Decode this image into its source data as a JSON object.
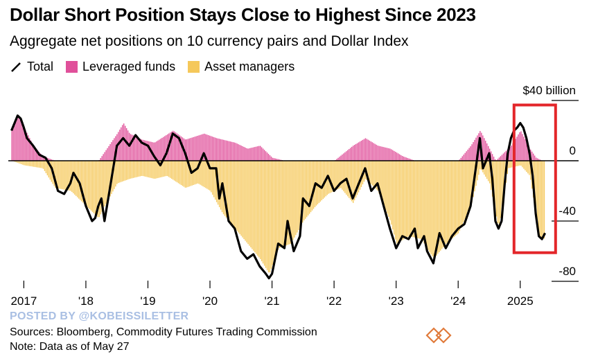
{
  "header": {
    "title": "Dollar Short Position Stays Close to Highest Since 2023",
    "subtitle": "Aggregate net positions on 10 currency pairs and Dollar Index"
  },
  "legend": {
    "total": "Total",
    "leveraged": "Leveraged funds",
    "asset": "Asset managers"
  },
  "colors": {
    "total": "#000000",
    "leveraged": "#e0509a",
    "asset": "#f5c85a",
    "asset_dark": "#f0a040",
    "highlight_box": "#e3262a",
    "grid": "#000000"
  },
  "watermark": "POSTED BY @KOBEISSILETTER",
  "footer": {
    "sources": "Sources: Bloomberg, Commodity Futures Trading Commission",
    "note": "Note: Data as of May 27"
  },
  "chart_data": {
    "type": "area",
    "unit_label": "$40 billion",
    "y_ticks": [
      {
        "value": 40,
        "label": "$40 billion"
      },
      {
        "value": 0,
        "label": "0"
      },
      {
        "value": -40,
        "label": "-40"
      },
      {
        "value": -80,
        "label": "-80"
      }
    ],
    "ylim": [
      -80,
      40
    ],
    "xlim": [
      2016.75,
      2025.55
    ],
    "x_ticks": [
      {
        "value": 2017,
        "label": "2017"
      },
      {
        "value": 2018,
        "label": "'18"
      },
      {
        "value": 2019,
        "label": "'19"
      },
      {
        "value": 2020,
        "label": "'20"
      },
      {
        "value": 2021,
        "label": "'21"
      },
      {
        "value": 2022,
        "label": "'22"
      },
      {
        "value": 2023,
        "label": "'23"
      },
      {
        "value": 2024,
        "label": "'24"
      },
      {
        "value": 2025,
        "label": "2025"
      }
    ],
    "highlight": {
      "x_start": 2024.9,
      "x_end": 2025.57,
      "y_top": 37,
      "y_bottom": -61
    },
    "series": [
      {
        "name": "Total",
        "points": [
          [
            2016.8,
            20
          ],
          [
            2016.85,
            25
          ],
          [
            2016.9,
            30
          ],
          [
            2016.95,
            28
          ],
          [
            2017.0,
            22
          ],
          [
            2017.05,
            15
          ],
          [
            2017.15,
            10
          ],
          [
            2017.25,
            4
          ],
          [
            2017.35,
            2
          ],
          [
            2017.45,
            -5
          ],
          [
            2017.55,
            -20
          ],
          [
            2017.65,
            -22
          ],
          [
            2017.75,
            -15
          ],
          [
            2017.8,
            -8
          ],
          [
            2017.9,
            -15
          ],
          [
            2018.0,
            -30
          ],
          [
            2018.1,
            -40
          ],
          [
            2018.15,
            -38
          ],
          [
            2018.2,
            -30
          ],
          [
            2018.25,
            -25
          ],
          [
            2018.3,
            -40
          ],
          [
            2018.4,
            -15
          ],
          [
            2018.5,
            10
          ],
          [
            2018.6,
            15
          ],
          [
            2018.7,
            10
          ],
          [
            2018.8,
            17
          ],
          [
            2018.9,
            12
          ],
          [
            2019.0,
            10
          ],
          [
            2019.1,
            3
          ],
          [
            2019.2,
            -3
          ],
          [
            2019.3,
            5
          ],
          [
            2019.4,
            18
          ],
          [
            2019.5,
            15
          ],
          [
            2019.6,
            5
          ],
          [
            2019.7,
            -8
          ],
          [
            2019.8,
            -5
          ],
          [
            2019.9,
            5
          ],
          [
            2020.0,
            -5
          ],
          [
            2020.1,
            -5
          ],
          [
            2020.15,
            -25
          ],
          [
            2020.2,
            -15
          ],
          [
            2020.3,
            -40
          ],
          [
            2020.4,
            -45
          ],
          [
            2020.5,
            -60
          ],
          [
            2020.6,
            -65
          ],
          [
            2020.7,
            -62
          ],
          [
            2020.8,
            -70
          ],
          [
            2020.9,
            -75
          ],
          [
            2020.95,
            -78
          ],
          [
            2021.0,
            -75
          ],
          [
            2021.1,
            -55
          ],
          [
            2021.2,
            -58
          ],
          [
            2021.25,
            -40
          ],
          [
            2021.3,
            -50
          ],
          [
            2021.35,
            -60
          ],
          [
            2021.45,
            -50
          ],
          [
            2021.5,
            -25
          ],
          [
            2021.6,
            -30
          ],
          [
            2021.7,
            -15
          ],
          [
            2021.8,
            -18
          ],
          [
            2021.9,
            -10
          ],
          [
            2022.0,
            -20
          ],
          [
            2022.1,
            -15
          ],
          [
            2022.2,
            -12
          ],
          [
            2022.3,
            -25
          ],
          [
            2022.4,
            -15
          ],
          [
            2022.5,
            -5
          ],
          [
            2022.6,
            -20
          ],
          [
            2022.7,
            -15
          ],
          [
            2022.8,
            -30
          ],
          [
            2022.9,
            -45
          ],
          [
            2023.0,
            -58
          ],
          [
            2023.1,
            -50
          ],
          [
            2023.2,
            -52
          ],
          [
            2023.3,
            -45
          ],
          [
            2023.35,
            -58
          ],
          [
            2023.45,
            -50
          ],
          [
            2023.5,
            -60
          ],
          [
            2023.6,
            -68
          ],
          [
            2023.7,
            -48
          ],
          [
            2023.8,
            -58
          ],
          [
            2023.9,
            -50
          ],
          [
            2024.0,
            -45
          ],
          [
            2024.1,
            -42
          ],
          [
            2024.2,
            -30
          ],
          [
            2024.25,
            -15
          ],
          [
            2024.3,
            0
          ],
          [
            2024.35,
            15
          ],
          [
            2024.4,
            -5
          ],
          [
            2024.5,
            5
          ],
          [
            2024.55,
            -12
          ],
          [
            2024.6,
            -40
          ],
          [
            2024.65,
            -45
          ],
          [
            2024.7,
            -40
          ],
          [
            2024.75,
            -15
          ],
          [
            2024.8,
            5
          ],
          [
            2024.85,
            15
          ],
          [
            2024.9,
            20
          ],
          [
            2024.95,
            22
          ],
          [
            2025.0,
            25
          ],
          [
            2025.05,
            22
          ],
          [
            2025.1,
            15
          ],
          [
            2025.15,
            5
          ],
          [
            2025.2,
            -10
          ],
          [
            2025.25,
            -35
          ],
          [
            2025.3,
            -50
          ],
          [
            2025.35,
            -52
          ],
          [
            2025.4,
            -48
          ]
        ]
      },
      {
        "name": "Leveraged funds",
        "points": [
          [
            2016.8,
            20
          ],
          [
            2016.9,
            30
          ],
          [
            2017.0,
            22
          ],
          [
            2017.15,
            10
          ],
          [
            2017.3,
            3
          ],
          [
            2017.5,
            0
          ],
          [
            2018.2,
            0
          ],
          [
            2018.5,
            18
          ],
          [
            2018.6,
            25
          ],
          [
            2018.7,
            18
          ],
          [
            2018.9,
            14
          ],
          [
            2019.1,
            12
          ],
          [
            2019.4,
            20
          ],
          [
            2019.6,
            14
          ],
          [
            2019.9,
            18
          ],
          [
            2020.1,
            15
          ],
          [
            2020.4,
            12
          ],
          [
            2020.6,
            8
          ],
          [
            2020.8,
            10
          ],
          [
            2021.0,
            2
          ],
          [
            2021.2,
            0
          ],
          [
            2022.0,
            0
          ],
          [
            2022.3,
            10
          ],
          [
            2022.5,
            15
          ],
          [
            2022.7,
            10
          ],
          [
            2022.9,
            8
          ],
          [
            2023.1,
            3
          ],
          [
            2023.3,
            0
          ],
          [
            2024.0,
            0
          ],
          [
            2024.2,
            10
          ],
          [
            2024.35,
            20
          ],
          [
            2024.5,
            8
          ],
          [
            2024.6,
            0
          ],
          [
            2024.85,
            10
          ],
          [
            2025.0,
            20
          ],
          [
            2025.15,
            8
          ],
          [
            2025.25,
            2
          ],
          [
            2025.35,
            0
          ]
        ]
      },
      {
        "name": "Asset managers",
        "points": [
          [
            2016.8,
            0
          ],
          [
            2017.0,
            -3
          ],
          [
            2017.3,
            -5
          ],
          [
            2017.5,
            -18
          ],
          [
            2017.75,
            -20
          ],
          [
            2018.0,
            -30
          ],
          [
            2018.2,
            -38
          ],
          [
            2018.3,
            -30
          ],
          [
            2018.5,
            -15
          ],
          [
            2018.7,
            -12
          ],
          [
            2018.9,
            -10
          ],
          [
            2019.1,
            -12
          ],
          [
            2019.3,
            -10
          ],
          [
            2019.6,
            -18
          ],
          [
            2019.8,
            -15
          ],
          [
            2020.0,
            -20
          ],
          [
            2020.2,
            -35
          ],
          [
            2020.4,
            -45
          ],
          [
            2020.6,
            -55
          ],
          [
            2020.8,
            -65
          ],
          [
            2020.95,
            -75
          ],
          [
            2021.1,
            -58
          ],
          [
            2021.3,
            -55
          ],
          [
            2021.5,
            -40
          ],
          [
            2021.7,
            -30
          ],
          [
            2021.9,
            -22
          ],
          [
            2022.1,
            -18
          ],
          [
            2022.3,
            -28
          ],
          [
            2022.5,
            -12
          ],
          [
            2022.7,
            -20
          ],
          [
            2022.9,
            -40
          ],
          [
            2023.0,
            -55
          ],
          [
            2023.2,
            -50
          ],
          [
            2023.4,
            -52
          ],
          [
            2023.6,
            -65
          ],
          [
            2023.8,
            -55
          ],
          [
            2024.0,
            -48
          ],
          [
            2024.2,
            -30
          ],
          [
            2024.35,
            -5
          ],
          [
            2024.5,
            -15
          ],
          [
            2024.65,
            -45
          ],
          [
            2024.8,
            -5
          ],
          [
            2025.0,
            -3
          ],
          [
            2025.15,
            -10
          ],
          [
            2025.3,
            -50
          ],
          [
            2025.4,
            -52
          ]
        ]
      }
    ]
  }
}
